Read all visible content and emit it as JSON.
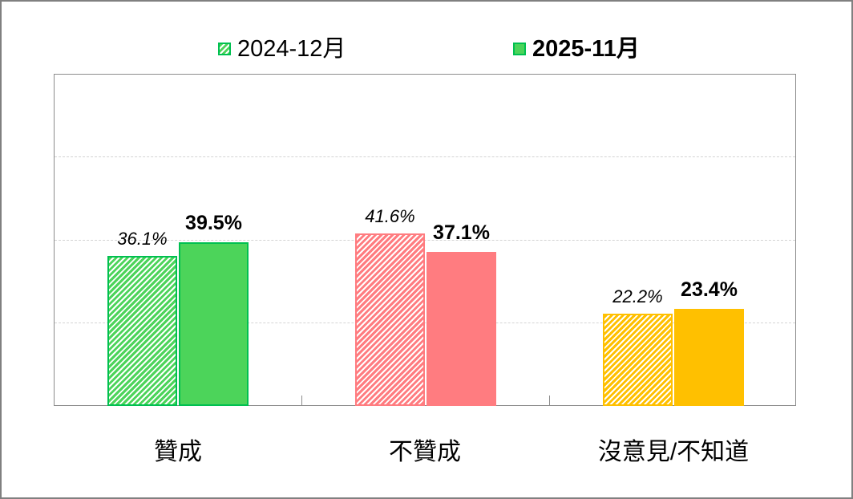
{
  "chart_data": {
    "type": "bar",
    "title": "",
    "xlabel": "",
    "ylabel": "",
    "ylim": [
      0,
      80
    ],
    "grid": true,
    "legend_position": "top",
    "categories": [
      "贊成",
      "不贊成",
      "沒意見/不知道"
    ],
    "series": [
      {
        "name": "2024-12月",
        "style": "hatched",
        "values": [
          36.1,
          41.6,
          22.2
        ],
        "labels": [
          "36.1%",
          "41.6%",
          "22.2%"
        ]
      },
      {
        "name": "2025-11月",
        "style": "solid",
        "values": [
          39.5,
          37.1,
          23.4
        ],
        "labels": [
          "39.5%",
          "37.1%",
          "23.4%"
        ]
      }
    ],
    "category_colors": [
      "#4cd45a",
      "#ff7c80",
      "#ffc000"
    ],
    "category_border_colors": [
      "#00c050",
      "#ff7c80",
      "#ffc000"
    ]
  },
  "legend": {
    "items": [
      {
        "label": "2024-12月"
      },
      {
        "label": "2025-11月"
      }
    ]
  }
}
